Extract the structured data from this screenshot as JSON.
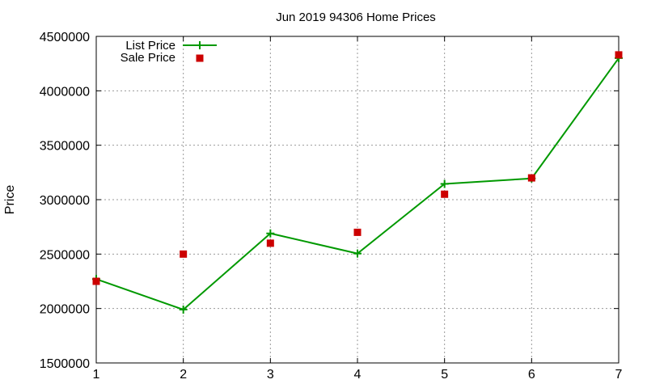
{
  "chart_data": {
    "type": "line",
    "title": "Jun 2019 94306 Home Prices",
    "xlabel": "",
    "ylabel": "Price",
    "x": [
      1,
      2,
      3,
      4,
      5,
      6,
      7
    ],
    "xlim": [
      1,
      7
    ],
    "ylim": [
      1500000,
      4500000
    ],
    "x_ticks": [
      "1",
      "2",
      "3",
      "4",
      "5",
      "6",
      "7"
    ],
    "y_ticks": [
      "1500000",
      "2000000",
      "2500000",
      "3000000",
      "3500000",
      "4000000",
      "4500000"
    ],
    "grid": true,
    "legend_position": "top-left",
    "series": [
      {
        "name": "List Price",
        "style": "line-with-plus-markers",
        "color": "#009900",
        "values": [
          2270000,
          1990000,
          2690000,
          2505000,
          3145000,
          3195000,
          4300000
        ]
      },
      {
        "name": "Sale Price",
        "style": "square-markers",
        "color": "#cc0000",
        "values": [
          2250000,
          2500000,
          2600000,
          2700000,
          3050000,
          3200000,
          4330000
        ]
      }
    ]
  }
}
